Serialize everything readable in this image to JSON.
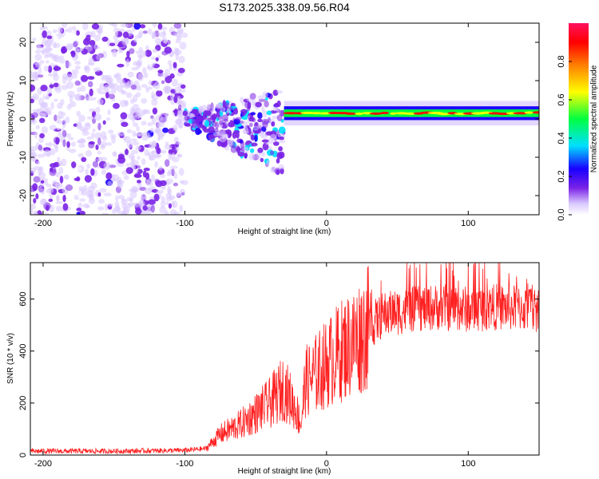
{
  "title": "S173.2025.338.09.56.R04",
  "chart_data": [
    {
      "type": "heatmap",
      "title": "S173.2025.338.09.56.R04",
      "xlabel": "Height of straight line (km)",
      "ylabel": "Frequency (Hz)",
      "xlim": [
        -209,
        150
      ],
      "ylim": [
        -25,
        25
      ],
      "xticks": [
        -200,
        -100,
        0,
        100
      ],
      "yticks": [
        -20,
        -10,
        0,
        10,
        20
      ],
      "colorbar": {
        "label": "Normalized spectral amplitude",
        "range": [
          0,
          1
        ],
        "ticks": [
          0.0,
          0.2,
          0.4,
          0.6,
          0.8
        ],
        "colors": [
          "#ffffff",
          "#d8c6ff",
          "#7a22e6",
          "#1a00ff",
          "#00e0ff",
          "#00ff40",
          "#ffff00",
          "#ff8000",
          "#ff0000",
          "#ff1060"
        ]
      },
      "features": [
        {
          "region": "noise",
          "x": [
            -209,
            -100
          ],
          "freq": [
            -25,
            25
          ],
          "amplitude": 0.15
        },
        {
          "region": "dispersed signal",
          "x": [
            -100,
            -30
          ],
          "freq_start": [
            -2,
            2
          ],
          "freq_end": [
            -15,
            8
          ],
          "amplitude": 0.3
        },
        {
          "region": "carrier tone",
          "x": [
            -30,
            150
          ],
          "freq_center": 1.5,
          "amplitude": 0.9
        }
      ]
    },
    {
      "type": "line",
      "xlabel": "Height of straight line (km)",
      "ylabel": "SNR (10 * v/v)",
      "xlim": [
        -209,
        150
      ],
      "ylim": [
        0,
        740
      ],
      "xticks": [
        -200,
        -100,
        0,
        100
      ],
      "yticks": [
        0,
        200,
        400,
        600
      ],
      "color": "#ff2020",
      "series": [
        {
          "name": "SNR",
          "x": [
            -209,
            -150,
            -100,
            -85,
            -75,
            -60,
            -50,
            -40,
            -30,
            -22,
            -18,
            -15,
            -10,
            0,
            10,
            20,
            30,
            40,
            60,
            80,
            100,
            120,
            150
          ],
          "y": [
            15,
            15,
            18,
            25,
            80,
            120,
            160,
            200,
            260,
            180,
            120,
            280,
            300,
            350,
            400,
            440,
            490,
            540,
            560,
            570,
            560,
            570,
            560
          ]
        }
      ]
    }
  ]
}
